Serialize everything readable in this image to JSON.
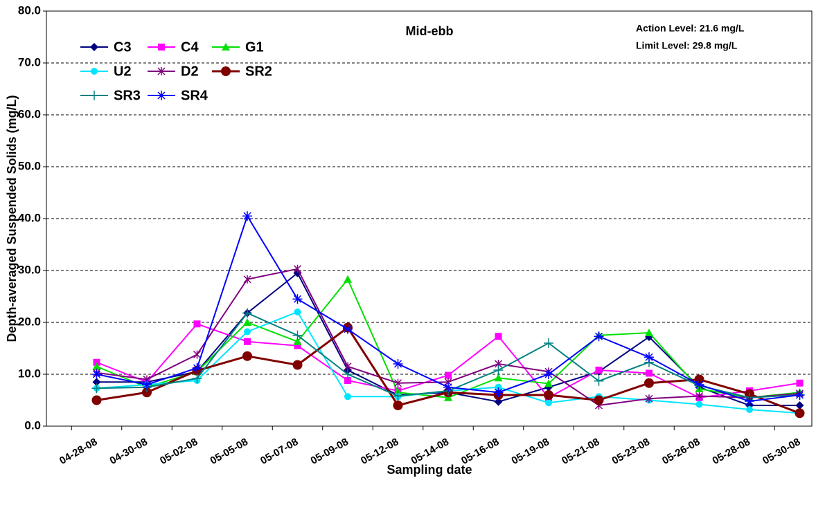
{
  "chart_data": {
    "type": "line",
    "annotations": [
      "Mid-ebb",
      "Action Level: 21.6 mg/L",
      "Limit Level: 29.8 mg/L"
    ],
    "x_label": "Sampling date",
    "y_label": "Depth-averaged Suspended Solids (mg/L)",
    "categories": [
      "04-28-08",
      "04-30-08",
      "05-02-08",
      "05-05-08",
      "05-07-08",
      "05-09-08",
      "05-12-08",
      "05-14-08",
      "05-16-08",
      "05-19-08",
      "05-21-08",
      "05-23-08",
      "05-26-08",
      "05-28-08",
      "05-30-08"
    ],
    "series": [
      {
        "name": "C3",
        "color": "#000080",
        "marker": "diamond",
        "values": [
          8.5,
          8.5,
          10.5,
          21.8,
          29.5,
          10.8,
          6,
          6.5,
          4.7,
          7.5,
          10.5,
          17.2,
          7.5,
          4,
          4
        ]
      },
      {
        "name": "C4",
        "color": "#ff00ff",
        "marker": "square",
        "values": [
          12.3,
          8.5,
          19.7,
          16.3,
          15.5,
          8.8,
          6.8,
          9.8,
          17.3,
          5.5,
          10.8,
          10.2,
          5.5,
          6.8,
          8.3
        ]
      },
      {
        "name": "G1",
        "color": "#00e000",
        "marker": "triangle",
        "values": [
          11.5,
          7.5,
          10.5,
          20,
          16.3,
          28.3,
          6.5,
          5.5,
          9.3,
          8.2,
          17.5,
          18,
          7.2,
          5.5,
          6.5
        ]
      },
      {
        "name": "U2",
        "color": "#00e5ff",
        "marker": "circle",
        "values": [
          7.3,
          8,
          8.8,
          18.2,
          22,
          5.7,
          5.7,
          6.8,
          7.5,
          4.5,
          5.7,
          5,
          4.2,
          3.2,
          2.5
        ]
      },
      {
        "name": "D2",
        "color": "#800080",
        "marker": "asterisk",
        "values": [
          10.3,
          9,
          13.8,
          28.3,
          30.3,
          11.5,
          8.3,
          8.5,
          12,
          10.5,
          4,
          5.3,
          5.8,
          5.5,
          6.3
        ]
      },
      {
        "name": "SR2",
        "color": "#800000",
        "marker": "bigcircle",
        "values": [
          5,
          6.5,
          10.7,
          13.5,
          11.8,
          19,
          4,
          6.5,
          6,
          6,
          5,
          8.3,
          9,
          6.2,
          2.5
        ]
      },
      {
        "name": "SR3",
        "color": "#008080",
        "marker": "plus",
        "values": [
          7.3,
          7.5,
          9.2,
          21.8,
          17.5,
          10,
          5.8,
          6.8,
          10.8,
          16,
          8.7,
          12.3,
          7.8,
          5.5,
          6
        ]
      },
      {
        "name": "SR4",
        "color": "#0000ff",
        "marker": "star",
        "values": [
          10,
          8,
          11.2,
          40.5,
          24.5,
          18.7,
          12,
          7.5,
          6.5,
          10,
          17.3,
          13.3,
          8,
          4.8,
          6
        ]
      }
    ],
    "ylim": [
      0,
      80
    ],
    "yticks": [
      {
        "value": 0,
        "label": "0.0"
      },
      {
        "value": 10,
        "label": "10.0"
      },
      {
        "value": 20,
        "label": "20.0"
      },
      {
        "value": 30,
        "label": "30.0"
      },
      {
        "value": 40,
        "label": "40.0"
      },
      {
        "value": 50,
        "label": "50.0"
      },
      {
        "value": 60,
        "label": "60.0"
      },
      {
        "value": 70,
        "label": "70.0"
      },
      {
        "value": 80,
        "label": "80.0"
      }
    ],
    "grid": true,
    "legend": "top-left"
  }
}
